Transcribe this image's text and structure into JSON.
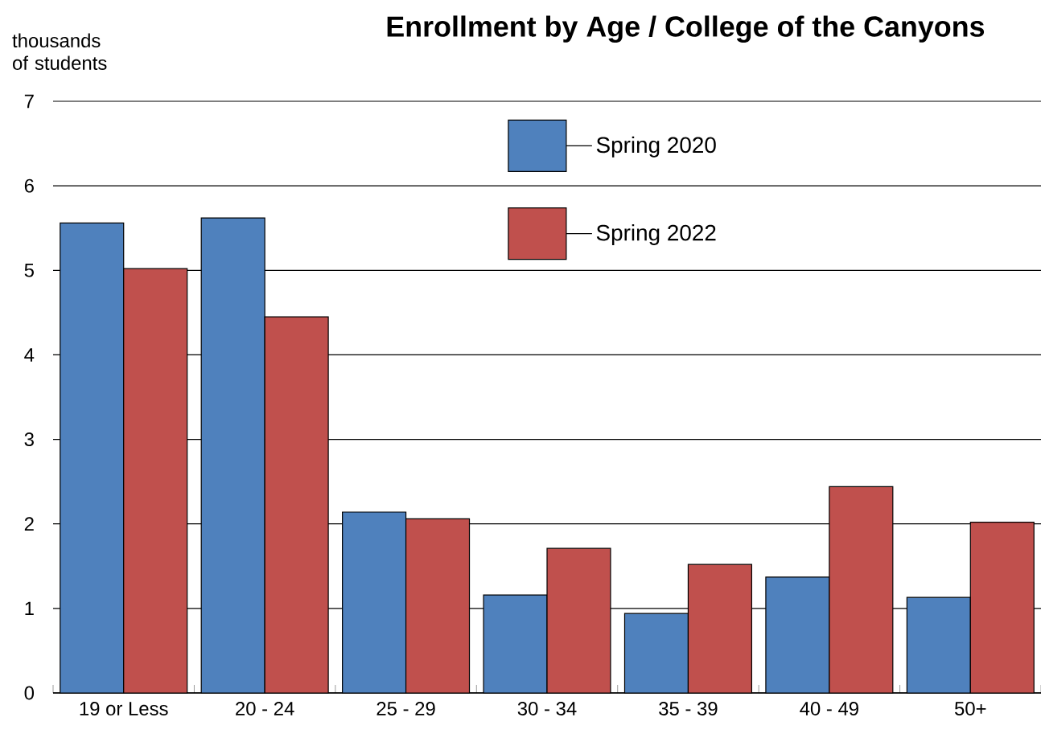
{
  "chart_data": {
    "type": "bar",
    "title": "Enrollment by Age / College of the Canyons",
    "ylabel": "thousands of students",
    "categories": [
      "19 or Less",
      "20 - 24",
      "25 - 29",
      "30 - 34",
      "35 - 39",
      "40 - 49",
      "50+"
    ],
    "series": [
      {
        "name": "Spring 2020",
        "color": "#4f81bd",
        "values": [
          5.56,
          5.62,
          2.14,
          1.16,
          0.94,
          1.37,
          1.13
        ]
      },
      {
        "name": "Spring 2022",
        "color": "#c0504d",
        "values": [
          5.02,
          4.45,
          2.06,
          1.71,
          1.52,
          2.44,
          2.02
        ]
      }
    ],
    "ylim": [
      0,
      7
    ],
    "yticks": [
      0,
      1,
      2,
      3,
      4,
      5,
      6,
      7
    ],
    "grid": "y",
    "legend": "top"
  }
}
